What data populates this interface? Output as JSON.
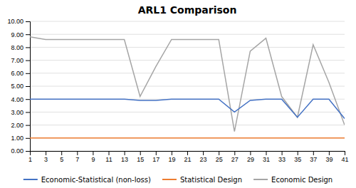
{
  "chart_data": {
    "type": "line",
    "title": "ARL1 Comparison",
    "x": [
      1,
      3,
      5,
      7,
      9,
      11,
      13,
      15,
      17,
      19,
      21,
      23,
      25,
      27,
      29,
      31,
      33,
      35,
      37,
      39,
      41
    ],
    "series": [
      {
        "name": "Economic-Statistical (non-loss)",
        "color": "#4472c4",
        "values": [
          4.0,
          4.0,
          4.0,
          4.0,
          4.0,
          4.0,
          4.0,
          3.9,
          3.9,
          4.0,
          4.0,
          4.0,
          4.0,
          3.0,
          3.9,
          4.0,
          4.0,
          2.6,
          4.0,
          4.0,
          2.5
        ]
      },
      {
        "name": "Statistical Design",
        "color": "#ed7d31",
        "values": [
          1.0,
          1.0,
          1.0,
          1.0,
          1.0,
          1.0,
          1.0,
          1.0,
          1.0,
          1.0,
          1.0,
          1.0,
          1.0,
          1.0,
          1.0,
          1.0,
          1.0,
          1.0,
          1.0,
          1.0,
          1.0
        ]
      },
      {
        "name": "Economic Design",
        "color": "#a5a5a5",
        "values": [
          8.8,
          8.6,
          8.6,
          8.6,
          8.6,
          8.6,
          8.6,
          4.2,
          6.5,
          8.6,
          8.6,
          8.6,
          8.6,
          1.5,
          7.7,
          8.7,
          4.2,
          2.6,
          8.2,
          5.3,
          2.0
        ]
      }
    ],
    "xlim": [
      1,
      41
    ],
    "xticks": [
      1,
      3,
      5,
      7,
      9,
      11,
      13,
      15,
      17,
      19,
      21,
      23,
      25,
      27,
      29,
      31,
      33,
      35,
      37,
      39,
      41
    ],
    "ylim": [
      0,
      10
    ],
    "yticks": [
      {
        "value": 0,
        "label": "0.00"
      },
      {
        "value": 1,
        "label": "1.00"
      },
      {
        "value": 2,
        "label": "2.00"
      },
      {
        "value": 3,
        "label": "3.00"
      },
      {
        "value": 4,
        "label": "4.00"
      },
      {
        "value": 5,
        "label": "5.00"
      },
      {
        "value": 6,
        "label": "6.00"
      },
      {
        "value": 7,
        "label": "7.00"
      },
      {
        "value": 8,
        "label": "8.00"
      },
      {
        "value": 9,
        "label": "9.00"
      },
      {
        "value": 10,
        "label": "10.00"
      }
    ],
    "grid": true,
    "legend": "bottom"
  }
}
